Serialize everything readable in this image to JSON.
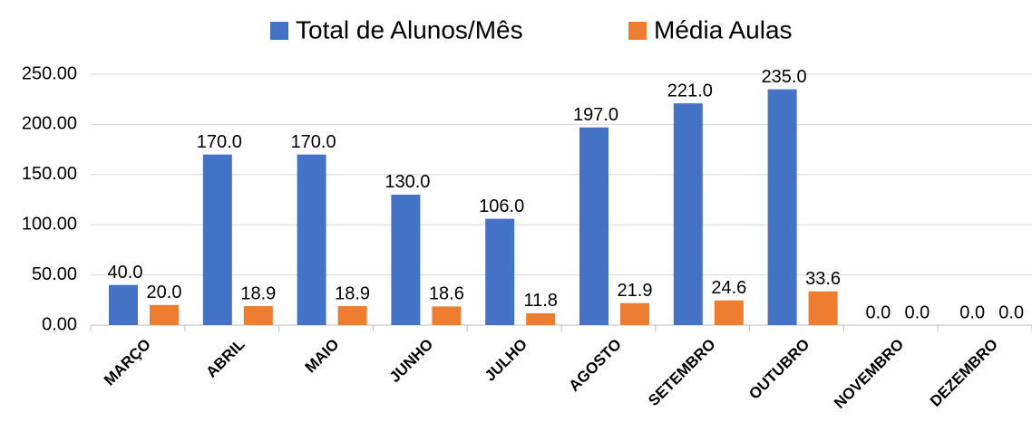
{
  "chart_data": {
    "type": "bar",
    "categories": [
      "MARÇO",
      "ABRIL",
      "MAIO",
      "JUNHO",
      "JULHO",
      "AGOSTO",
      "SETEMBRO",
      "OUTUBRO",
      "NOVEMBRO",
      "DEZEMBRO"
    ],
    "series": [
      {
        "name": "Total de Alunos/Mês",
        "color": "#4472c4",
        "values": [
          40,
          170,
          170,
          130,
          106,
          197,
          221,
          235,
          0,
          0
        ],
        "value_labels": [
          "40.0",
          "170.0",
          "170.0",
          "130.0",
          "106.0",
          "197.0",
          "221.0",
          "235.0",
          "0.0",
          "0.0"
        ]
      },
      {
        "name": "Média Aulas",
        "color": "#ed7d31",
        "values": [
          20,
          18.9,
          18.9,
          18.6,
          11.8,
          21.9,
          24.6,
          33.6,
          0,
          0
        ],
        "value_labels": [
          "20.0",
          "18.9",
          "18.9",
          "18.6",
          "11.8",
          "21.9",
          "24.6",
          "33.6",
          "0.0",
          "0.0"
        ]
      }
    ],
    "ylim": [
      0,
      250
    ],
    "yticks": [
      {
        "value": 0,
        "label": "0.00"
      },
      {
        "value": 50,
        "label": "50.00"
      },
      {
        "value": 100,
        "label": "100.00"
      },
      {
        "value": 150,
        "label": "150.00"
      },
      {
        "value": 200,
        "label": "200.00"
      },
      {
        "value": 250,
        "label": "250.00"
      }
    ],
    "grid": true,
    "legend": "top"
  }
}
